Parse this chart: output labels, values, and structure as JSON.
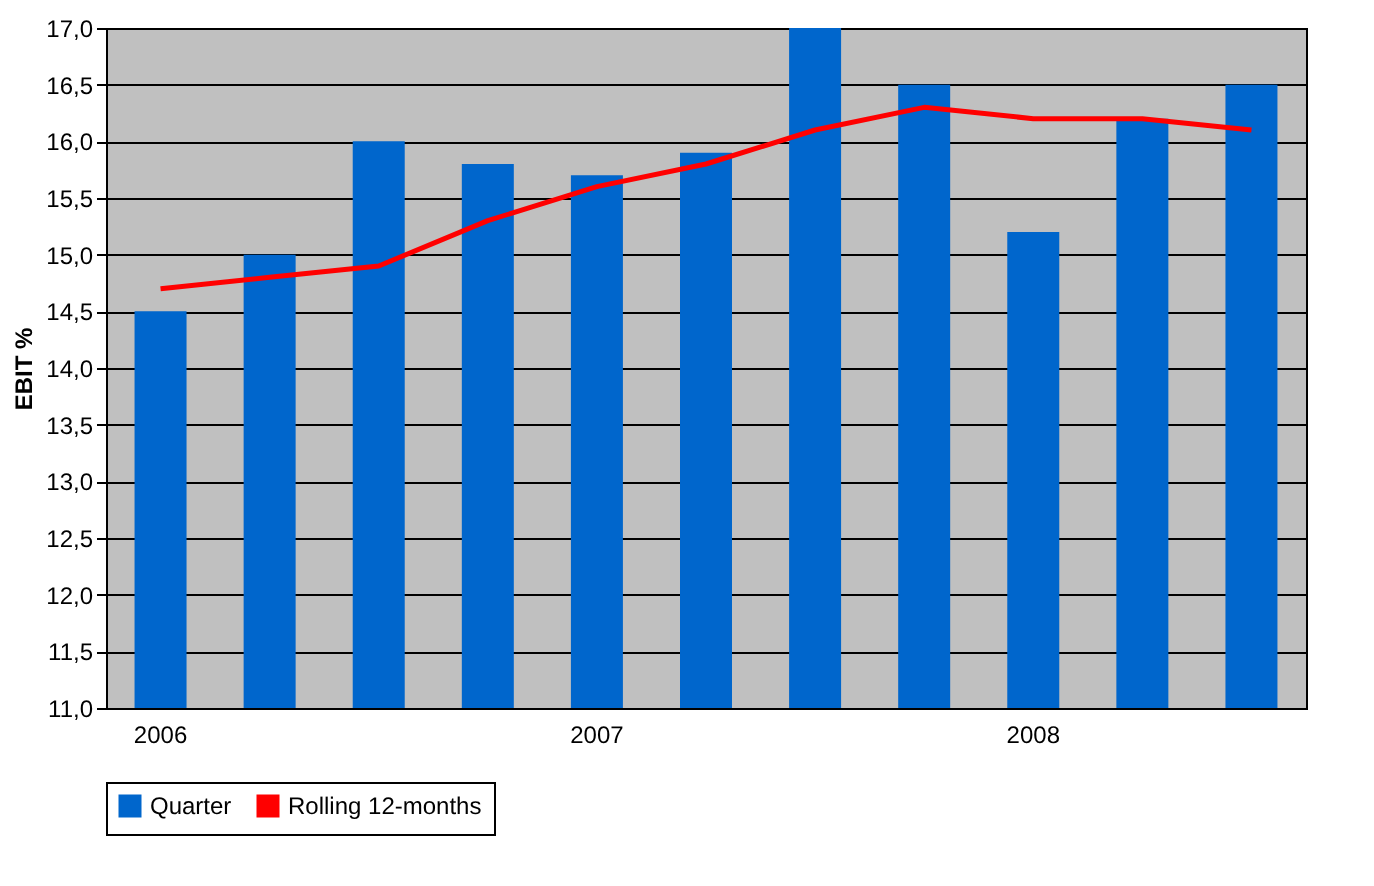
{
  "chart_data": {
    "type": "bar",
    "ylabel": "EBIT %",
    "categories": [
      "2006",
      null,
      null,
      null,
      "2007",
      null,
      null,
      null,
      "2008",
      null,
      null
    ],
    "series": [
      {
        "name": "Quarter",
        "type": "bar",
        "color": "#0066cc",
        "values": [
          14.5,
          15.0,
          16.0,
          15.8,
          15.7,
          15.9,
          17.0,
          16.5,
          15.2,
          16.2,
          16.5
        ]
      },
      {
        "name": "Rolling 12-months",
        "type": "line",
        "color": "#ff0000",
        "values": [
          14.7,
          14.8,
          14.9,
          15.3,
          15.6,
          15.8,
          16.1,
          16.3,
          16.2,
          16.2,
          16.1
        ]
      }
    ],
    "ylim": [
      11,
      17
    ],
    "yticks": [
      {
        "value": 11,
        "label": "11,0"
      },
      {
        "value": 11.5,
        "label": "11,5"
      },
      {
        "value": 12,
        "label": "12,0"
      },
      {
        "value": 12.5,
        "label": "12,5"
      },
      {
        "value": 13,
        "label": "13,0"
      },
      {
        "value": 13.5,
        "label": "13,5"
      },
      {
        "value": 14,
        "label": "14,0"
      },
      {
        "value": 14.5,
        "label": "14,5"
      },
      {
        "value": 15,
        "label": "15,0"
      },
      {
        "value": 15.5,
        "label": "15,5"
      },
      {
        "value": 16,
        "label": "16,0"
      },
      {
        "value": 16.5,
        "label": "16,5"
      },
      {
        "value": 17,
        "label": "17,0"
      }
    ],
    "grid": "y",
    "legend": "bottom"
  }
}
